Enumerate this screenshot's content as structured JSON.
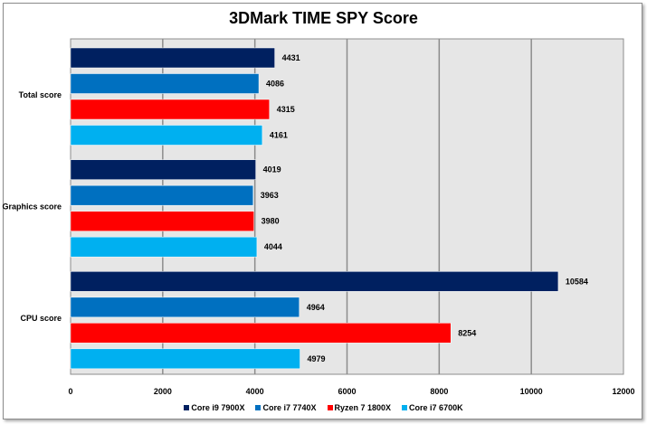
{
  "chart_data": {
    "type": "bar",
    "orientation": "horizontal",
    "title": "3DMark TIME SPY Score",
    "categories": [
      "Total score",
      "Graphics score",
      "CPU score"
    ],
    "series": [
      {
        "name": "Core i9 7900X",
        "color": "#002060",
        "values": [
          4431,
          4019,
          10584
        ]
      },
      {
        "name": "Core i7 7740X",
        "color": "#0070c0",
        "values": [
          4086,
          3963,
          4964
        ]
      },
      {
        "name": "Ryzen 7 1800X",
        "color": "#ff0000",
        "values": [
          4315,
          3980,
          8254
        ]
      },
      {
        "name": "Core i7 6700K",
        "color": "#00b0f0",
        "values": [
          4161,
          4044,
          4979
        ]
      }
    ],
    "xlim": [
      0,
      12000
    ],
    "xticks": [
      "0",
      "2000",
      "4000",
      "6000",
      "8000",
      "10000",
      "12000"
    ],
    "grid": true,
    "legend": "bottom",
    "data_labels": true,
    "plot_background": "#e6e6e6"
  }
}
